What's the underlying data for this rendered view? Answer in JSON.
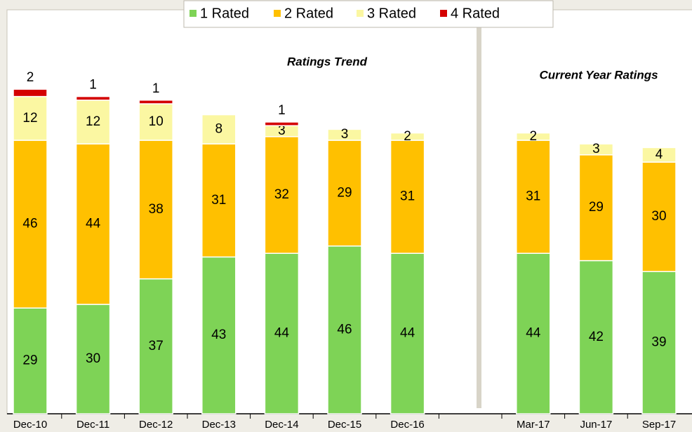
{
  "chart_data": {
    "type": "stacked_bar",
    "annotations": [
      "Ratings Trend",
      "Current Year Ratings"
    ],
    "categories": [
      "Dec-10",
      "Dec-11",
      "Dec-12",
      "Dec-13",
      "Dec-14",
      "Dec-15",
      "Dec-16",
      null,
      "Mar-17",
      "Jun-17",
      "Sep-17"
    ],
    "series": [
      {
        "name": "1 Rated",
        "color": "#7ed356",
        "values": [
          29,
          30,
          37,
          43,
          44,
          46,
          44,
          null,
          44,
          42,
          39
        ]
      },
      {
        "name": "2 Rated",
        "color": "#ffc000",
        "values": [
          46,
          44,
          38,
          31,
          32,
          29,
          31,
          null,
          31,
          29,
          30
        ]
      },
      {
        "name": "3 Rated",
        "color": "#fbf7a2",
        "values": [
          12,
          12,
          10,
          8,
          3,
          3,
          2,
          null,
          2,
          3,
          4
        ]
      },
      {
        "name": "4 Rated",
        "color": "#d40000",
        "values": [
          2,
          1,
          1,
          null,
          1,
          null,
          null,
          null,
          null,
          null,
          null
        ]
      }
    ],
    "legend": "top"
  }
}
